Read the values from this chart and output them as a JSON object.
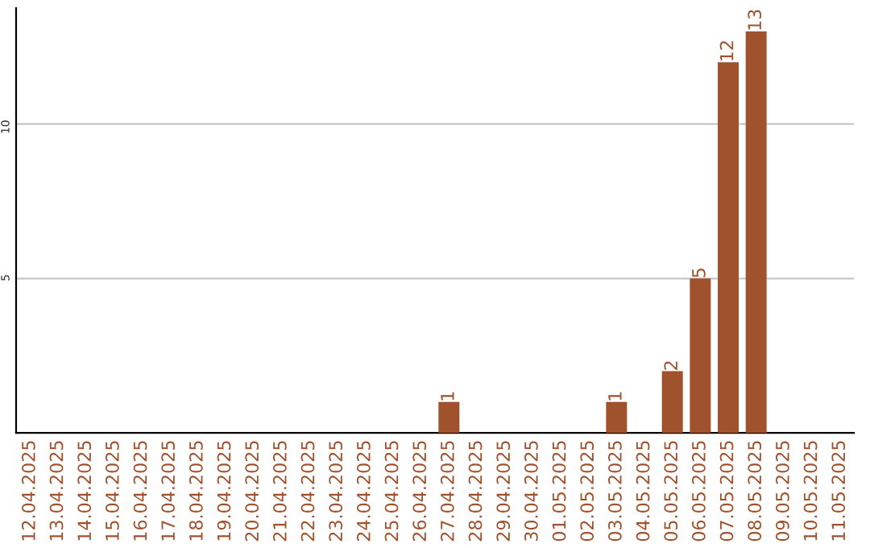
{
  "chart_data": {
    "type": "bar",
    "categories": [
      "12.04.2025",
      "13.04.2025",
      "14.04.2025",
      "15.04.2025",
      "16.04.2025",
      "17.04.2025",
      "18.04.2025",
      "19.04.2025",
      "20.04.2025",
      "21.04.2025",
      "22.04.2025",
      "23.04.2025",
      "24.04.2025",
      "25.04.2025",
      "26.04.2025",
      "27.04.2025",
      "28.04.2025",
      "29.04.2025",
      "30.04.2025",
      "01.05.2025",
      "02.05.2025",
      "03.05.2025",
      "04.05.2025",
      "05.05.2025",
      "06.05.2025",
      "07.05.2025",
      "08.05.2025",
      "09.05.2025",
      "10.05.2025",
      "11.05.2025"
    ],
    "values": [
      0,
      0,
      0,
      0,
      0,
      0,
      0,
      0,
      0,
      0,
      0,
      0,
      0,
      0,
      0,
      1,
      0,
      0,
      0,
      0,
      0,
      1,
      0,
      2,
      5,
      12,
      13,
      0,
      0,
      0
    ],
    "value_labels": [
      null,
      null,
      null,
      null,
      null,
      null,
      null,
      null,
      null,
      null,
      null,
      null,
      null,
      null,
      null,
      "1",
      null,
      null,
      null,
      null,
      null,
      "1",
      null,
      "2",
      "5",
      "12",
      "13",
      null,
      null,
      null
    ],
    "color": "#a0522d",
    "ylim": [
      0,
      13.75
    ],
    "yticks": [
      5,
      10
    ],
    "grid": "y"
  }
}
